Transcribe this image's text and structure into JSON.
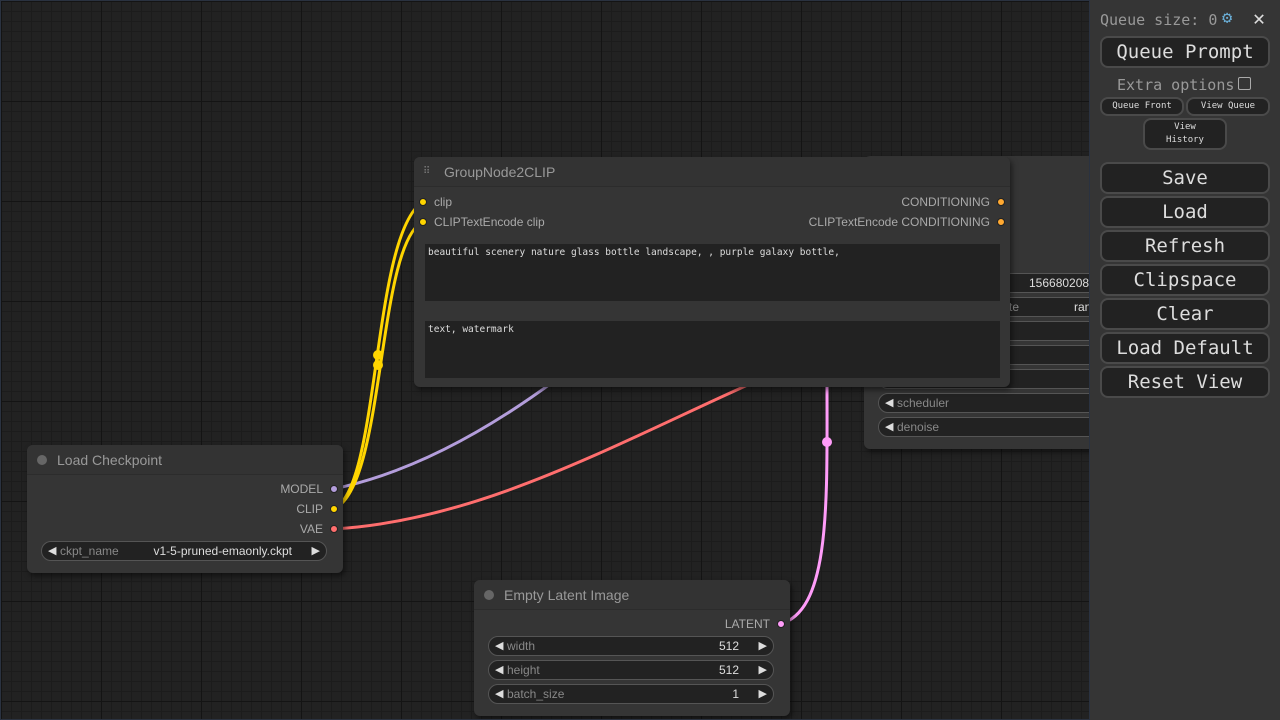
{
  "nodes": {
    "group": {
      "title": "GroupNode2CLIP",
      "inputs": [
        "clip",
        "CLIPTextEncode clip"
      ],
      "outputs": [
        "CONDITIONING",
        "CLIPTextEncode CONDITIONING"
      ],
      "positive_text": "beautiful scenery nature glass bottle landscape, , purple galaxy bottle,",
      "negative_text": "text, watermark"
    },
    "sampler": {
      "seed_value": "156680208",
      "control_label": "te",
      "control_value": "ran",
      "scheduler_label": "scheduler",
      "denoise_label": "denoise"
    },
    "checkpoint": {
      "title": "Load Checkpoint",
      "outputs": [
        "MODEL",
        "CLIP",
        "VAE"
      ],
      "ckpt_label": "ckpt_name",
      "ckpt_value": "v1-5-pruned-emaonly.ckpt"
    },
    "latent": {
      "title": "Empty Latent Image",
      "output": "LATENT",
      "widgets": [
        {
          "label": "width",
          "value": "512"
        },
        {
          "label": "height",
          "value": "512"
        },
        {
          "label": "batch_size",
          "value": "1"
        }
      ]
    }
  },
  "colors": {
    "clip": "#ffd500",
    "model": "#b39ddb",
    "vae": "#ff6e6e",
    "latent": "#ff9cf9",
    "conditioning": "#ffa931"
  },
  "panel": {
    "queue_size": "Queue size: 0",
    "queue_prompt": "Queue Prompt",
    "extra_options": "Extra options",
    "queue_front": "Queue Front",
    "view_queue": "View Queue",
    "view_history": "View History",
    "buttons": [
      "Save",
      "Load",
      "Refresh",
      "Clipspace",
      "Clear",
      "Load Default",
      "Reset View"
    ]
  }
}
